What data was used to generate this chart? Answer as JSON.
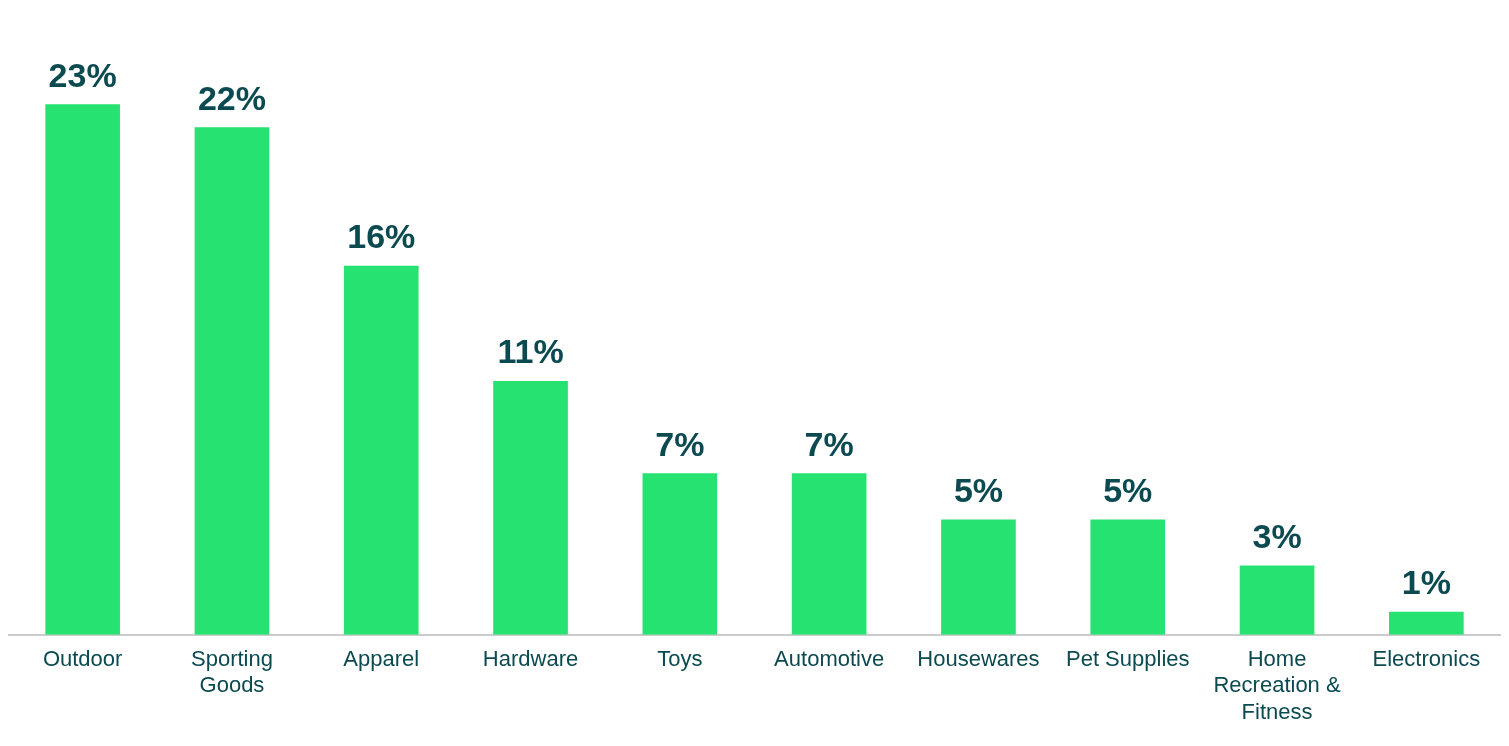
{
  "chart_data": {
    "type": "bar",
    "categories": [
      "Outdoor",
      "Sporting Goods",
      "Apparel",
      "Hardware",
      "Toys",
      "Automotive",
      "Housewares",
      "Pet Supplies",
      "Home Recreation & Fitness",
      "Electronics"
    ],
    "values": [
      23,
      22,
      16,
      11,
      7,
      7,
      5,
      5,
      3,
      1
    ],
    "value_labels": [
      "23%",
      "22%",
      "16%",
      "11%",
      "7%",
      "7%",
      "5%",
      "5%",
      "3%",
      "1%"
    ],
    "color": "#26e270",
    "grid": false,
    "legend": false
  }
}
